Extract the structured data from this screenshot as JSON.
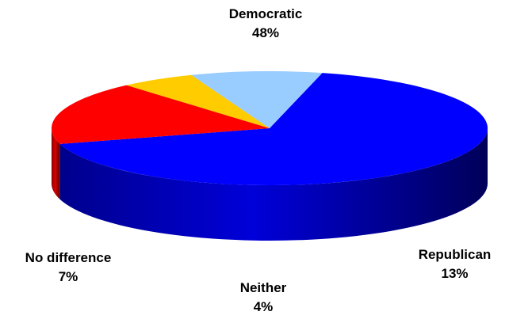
{
  "chart_data": {
    "type": "pie",
    "style": "3d",
    "title": "",
    "start_angle_deg": 76,
    "slices": [
      {
        "label": "Democratic",
        "value": 48,
        "value_label": "48%",
        "color": "#0000ff"
      },
      {
        "label": "Republican",
        "value": 13,
        "value_label": "13%",
        "color": "#ff0000"
      },
      {
        "label": "Neither",
        "value": 4,
        "value_label": "4%",
        "color": "#ffcc00"
      },
      {
        "label": "No difference",
        "value": 7,
        "value_label": "7%",
        "color": "#99ccff"
      }
    ]
  }
}
